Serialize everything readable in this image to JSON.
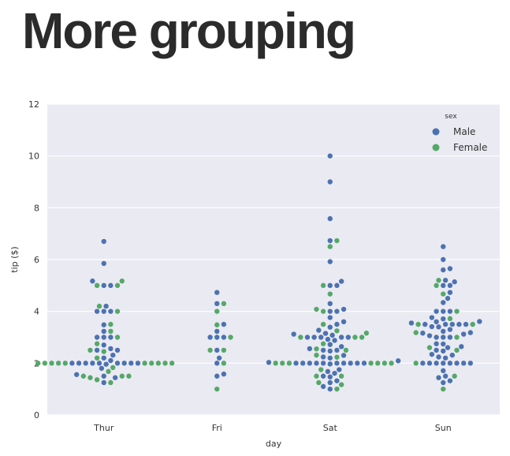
{
  "slide": {
    "title": "More grouping"
  },
  "chart_data": {
    "type": "scatter",
    "subtype": "swarm",
    "title": "",
    "xlabel": "day",
    "ylabel": "tip ($)",
    "categories": [
      "Thur",
      "Fri",
      "Sat",
      "Sun"
    ],
    "ylim": [
      0,
      12
    ],
    "yticks": [
      0,
      2,
      4,
      6,
      8,
      10,
      12
    ],
    "grid": true,
    "legend": {
      "title": "sex",
      "position": "top-right",
      "entries": [
        "Male",
        "Female"
      ]
    },
    "colors": {
      "Male": "#4c72b0",
      "Female": "#55a868",
      "background": "#eaeaf2",
      "grid": "#ffffff"
    },
    "series": [
      {
        "name": "Male",
        "points": {
          "Thur": [
            6.7,
            5.85,
            5.17,
            5.0,
            5.0,
            4.2,
            4.0,
            4.0,
            4.0,
            3.48,
            3.23,
            3.0,
            3.0,
            3.0,
            2.7,
            2.56,
            2.5,
            2.5,
            2.31,
            2.2,
            2.1,
            2.0,
            2.0,
            2.0,
            2.0,
            2.0,
            2.0,
            2.0,
            2.0,
            2.0,
            1.96,
            1.8,
            1.56,
            1.5,
            1.44,
            1.25
          ],
          "Fri": [
            4.73,
            4.3,
            3.5,
            3.23,
            3.0,
            3.0,
            3.0,
            2.5,
            2.2,
            2.0,
            1.58,
            1.5
          ],
          "Sat": [
            10.0,
            9.0,
            7.58,
            6.73,
            5.92,
            5.16,
            5.0,
            5.0,
            4.3,
            4.08,
            4.0,
            4.0,
            3.76,
            3.6,
            3.5,
            3.39,
            3.27,
            3.15,
            3.12,
            3.08,
            3.0,
            3.0,
            3.0,
            3.0,
            3.0,
            2.92,
            2.88,
            2.72,
            2.64,
            2.56,
            2.5,
            2.5,
            2.47,
            2.3,
            2.24,
            2.2,
            2.09,
            2.03,
            2.0,
            2.0,
            2.0,
            2.0,
            2.0,
            2.0,
            2.0,
            2.0,
            2.0,
            2.0,
            1.97,
            1.75,
            1.68,
            1.61,
            1.5,
            1.47,
            1.32,
            1.25,
            1.1,
            1.0
          ],
          "Sun": [
            6.5,
            6.0,
            5.65,
            5.6,
            5.2,
            5.14,
            5.0,
            5.0,
            4.73,
            4.5,
            4.34,
            4.0,
            4.0,
            4.0,
            3.76,
            3.71,
            3.61,
            3.6,
            3.55,
            3.5,
            3.5,
            3.5,
            3.5,
            3.5,
            3.41,
            3.4,
            3.3,
            3.23,
            3.18,
            3.16,
            3.12,
            3.06,
            3.0,
            3.0,
            3.0,
            2.75,
            2.74,
            2.64,
            2.6,
            2.5,
            2.47,
            2.34,
            2.31,
            2.24,
            2.2,
            2.0,
            2.0,
            2.0,
            2.0,
            2.0,
            2.0,
            2.0,
            2.0,
            1.71,
            1.5,
            1.44,
            1.32,
            1.25
          ]
        }
      },
      {
        "name": "Female",
        "points": {
          "Thur": [
            5.17,
            5.0,
            5.0,
            4.2,
            4.0,
            3.5,
            3.23,
            3.0,
            2.75,
            2.5,
            2.45,
            2.2,
            2.0,
            2.0,
            2.0,
            2.0,
            2.0,
            2.0,
            2.0,
            2.0,
            2.0,
            2.0,
            1.83,
            1.68,
            1.5,
            1.5,
            1.5,
            1.44,
            1.36,
            1.25
          ],
          "Fri": [
            4.3,
            4.0,
            3.48,
            3.0,
            2.5,
            2.5,
            2.0,
            1.0
          ],
          "Sat": [
            6.5,
            6.73,
            5.0,
            4.67,
            4.08,
            4.0,
            3.5,
            3.25,
            3.16,
            3.0,
            3.0,
            3.0,
            2.75,
            2.55,
            2.5,
            2.31,
            2.23,
            2.0,
            2.0,
            2.0,
            2.0,
            2.0,
            2.0,
            2.0,
            1.75,
            1.5,
            1.5,
            1.25,
            1.17,
            1.0
          ],
          "Sun": [
            5.2,
            5.0,
            4.67,
            4.0,
            3.5,
            3.5,
            3.0,
            2.5,
            2.0,
            1.0,
            3.72,
            3.18,
            2.6,
            1.5
          ]
        }
      }
    ]
  }
}
